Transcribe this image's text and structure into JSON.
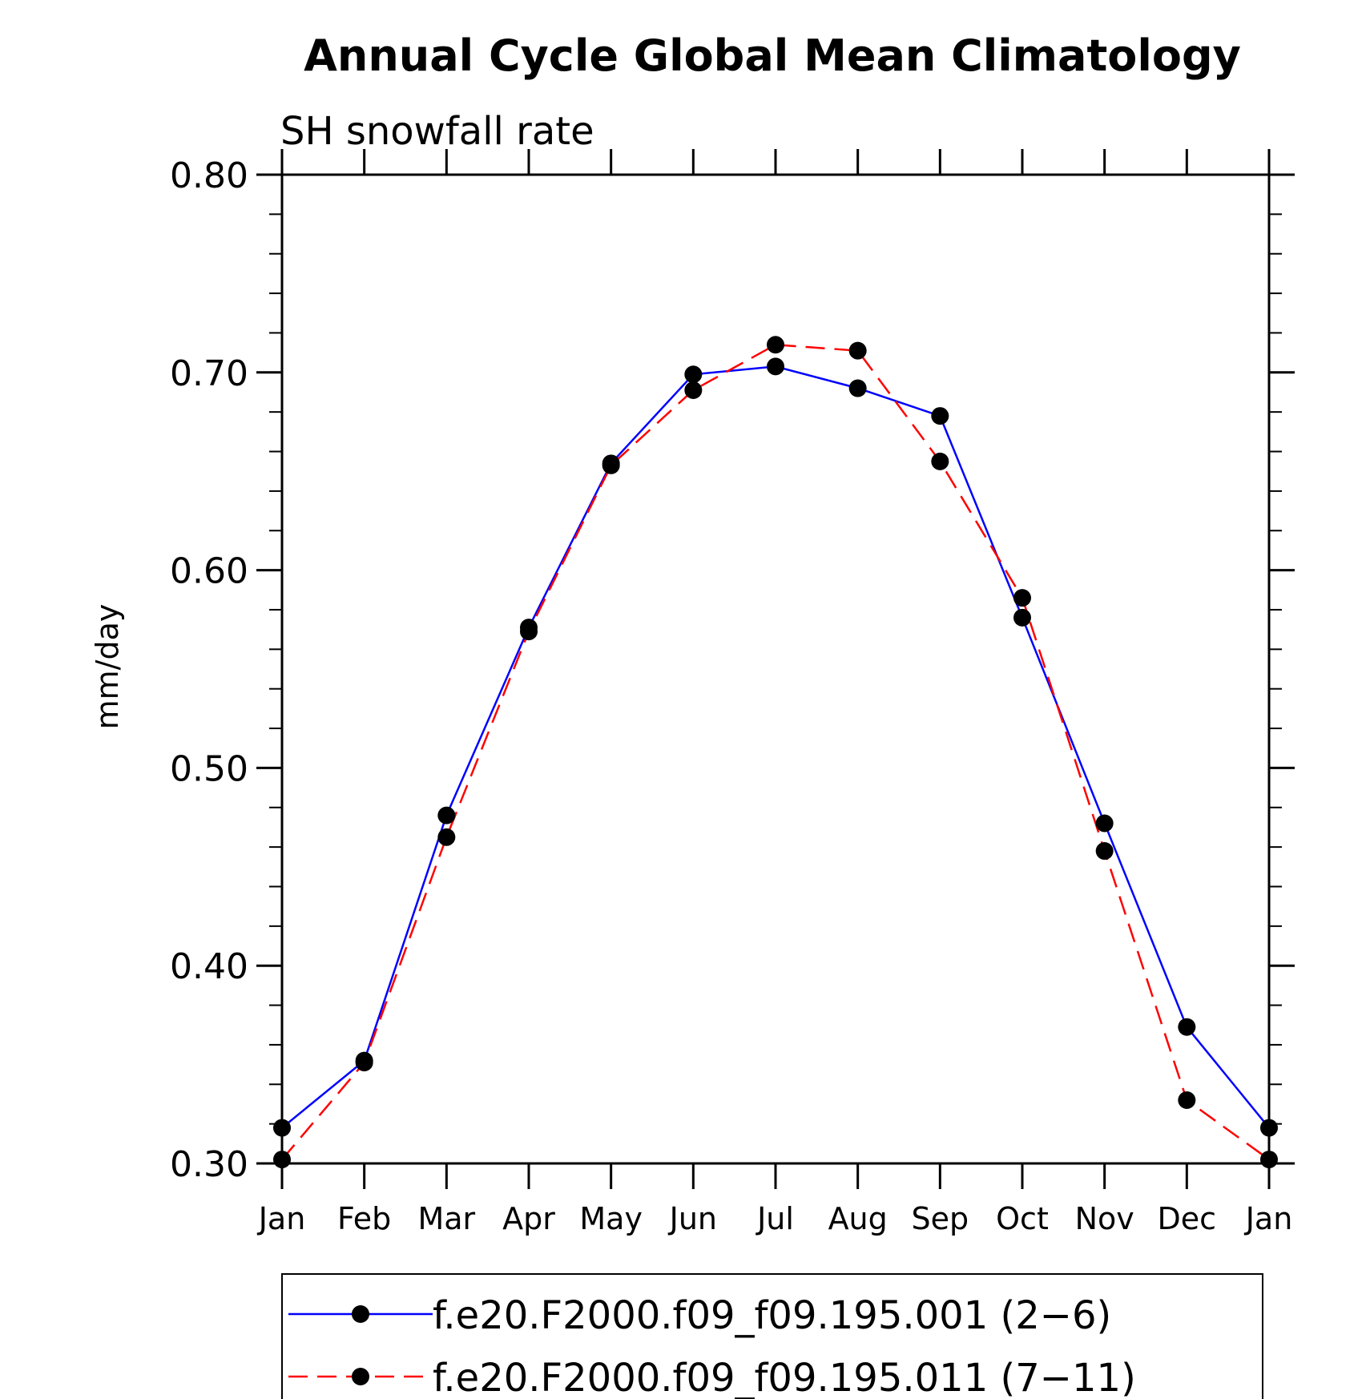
{
  "chart_data": {
    "type": "line",
    "title": "Annual Cycle Global Mean Climatology",
    "subtitle": "SH snowfall rate",
    "xlabel": "",
    "ylabel": "mm/day",
    "categories": [
      "Jan",
      "Feb",
      "Mar",
      "Apr",
      "May",
      "Jun",
      "Jul",
      "Aug",
      "Sep",
      "Oct",
      "Nov",
      "Dec",
      "Jan"
    ],
    "ylim": [
      0.3,
      0.8
    ],
    "yticks": [
      0.3,
      0.4,
      0.5,
      0.6,
      0.7,
      0.8
    ],
    "ytick_labels": [
      "0.30",
      "0.40",
      "0.50",
      "0.60",
      "0.70",
      "0.80"
    ],
    "grid": false,
    "legend_position": "bottom",
    "series": [
      {
        "name": "f.e20.F2000.f09_f09.195.001 (2−6)",
        "color": "#0000ff",
        "dash": "solid",
        "values": [
          0.318,
          0.352,
          0.476,
          0.571,
          0.654,
          0.699,
          0.703,
          0.692,
          0.678,
          0.576,
          0.472,
          0.369,
          0.318
        ]
      },
      {
        "name": "f.e20.F2000.f09_f09.195.011 (7−11)",
        "color": "#ff0000",
        "dash": "dashed",
        "values": [
          0.302,
          0.351,
          0.465,
          0.569,
          0.653,
          0.691,
          0.714,
          0.711,
          0.655,
          0.586,
          0.458,
          0.332,
          0.302
        ]
      }
    ]
  }
}
